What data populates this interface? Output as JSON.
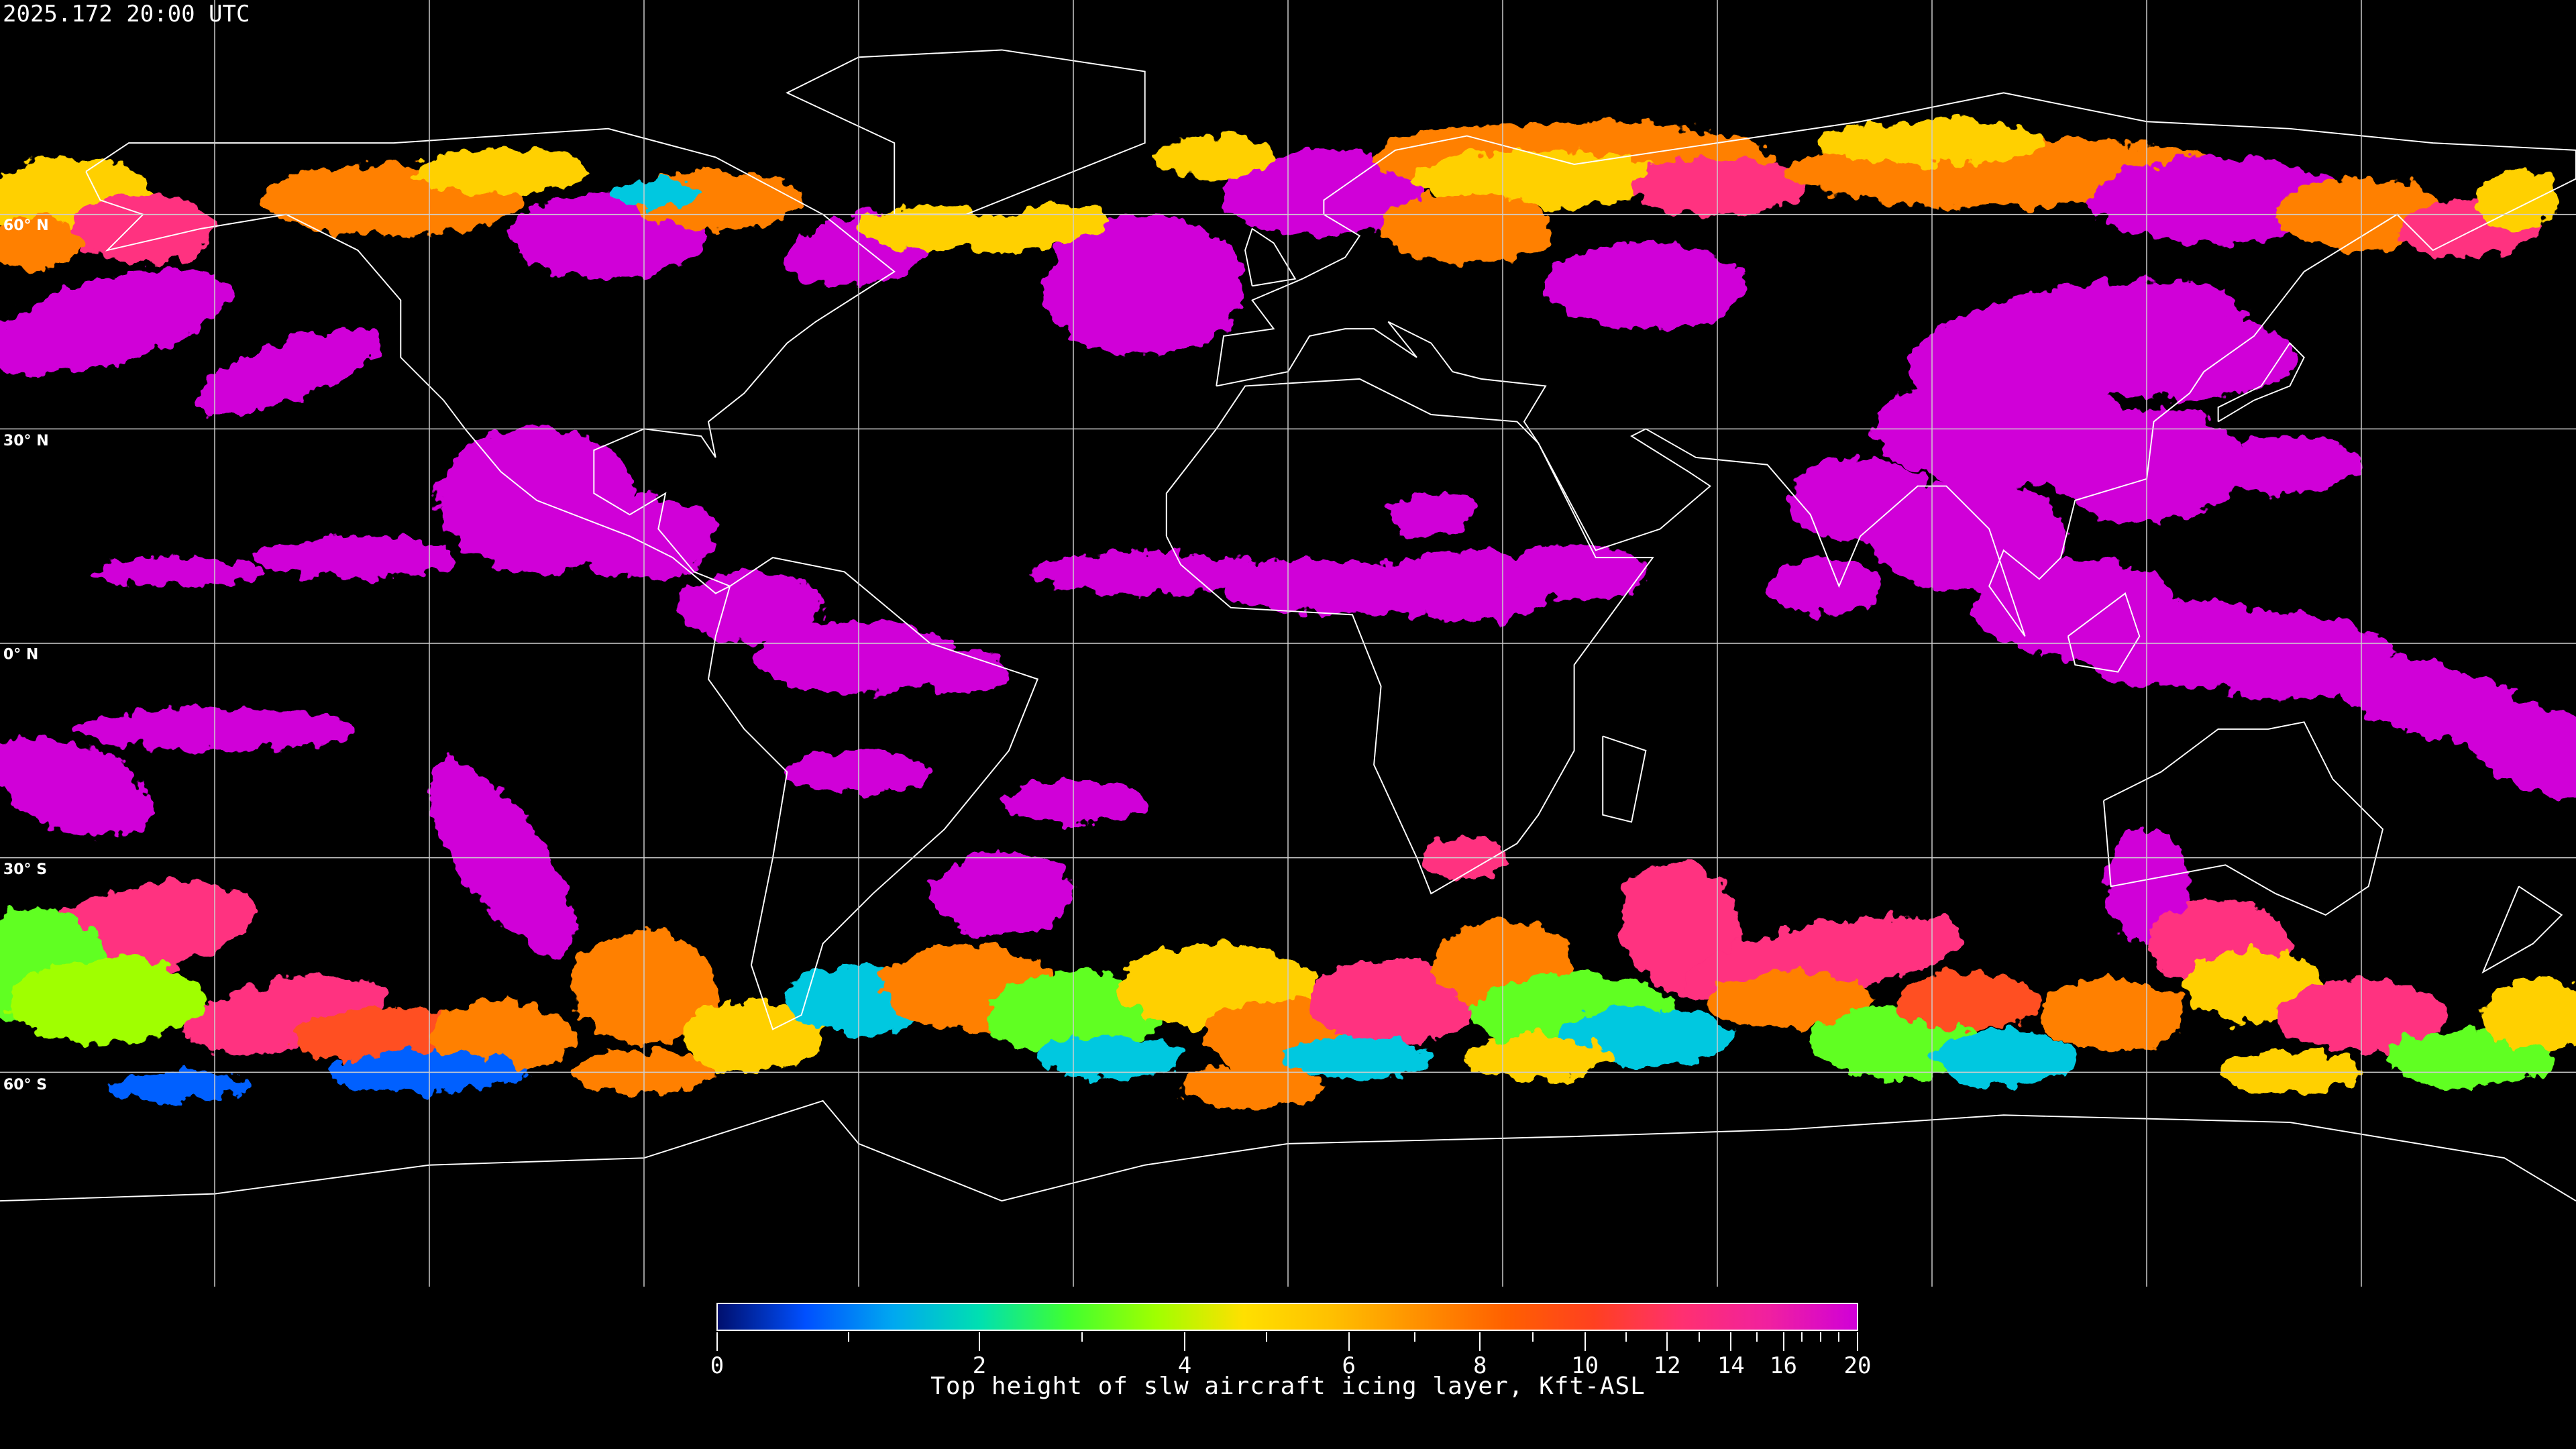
{
  "header": {
    "timestamp": "2025.172 20:00 UTC"
  },
  "map": {
    "projection": "equirectangular",
    "lon_range": [
      -180,
      180
    ],
    "lat_range": [
      -90,
      90
    ],
    "grid_spacing_deg": 30,
    "lat_labels": [
      "60° N",
      "30° N",
      "0° N",
      "30° S",
      "60° S"
    ],
    "background_color": "#000000",
    "coastline_color": "#ffffff",
    "grid_color": "#cccccc"
  },
  "colorbar": {
    "min": 0,
    "max": 20,
    "major_ticks": [
      {
        "value": 0,
        "label": "0"
      },
      {
        "value": 2,
        "label": "2"
      },
      {
        "value": 4,
        "label": "4"
      },
      {
        "value": 6,
        "label": "6"
      },
      {
        "value": 8,
        "label": "8"
      },
      {
        "value": 10,
        "label": "10"
      },
      {
        "value": 12,
        "label": "12"
      },
      {
        "value": 14,
        "label": "14"
      },
      {
        "value": 16,
        "label": "16"
      },
      {
        "value": 20,
        "label": "20"
      }
    ],
    "minor_ticks": [
      1,
      3,
      5,
      7,
      9,
      11,
      13,
      15,
      17,
      18,
      19
    ],
    "caption": "Top height of slw aircraft icing layer, Kft-ASL",
    "colors": [
      "#000f6e",
      "#0050ff",
      "#00a8f0",
      "#00e0b0",
      "#40ff30",
      "#a0ff00",
      "#ffe000",
      "#ffc000",
      "#ff9000",
      "#ff6000",
      "#ff4020",
      "#ff3070",
      "#f020a0",
      "#d000d8"
    ]
  }
}
